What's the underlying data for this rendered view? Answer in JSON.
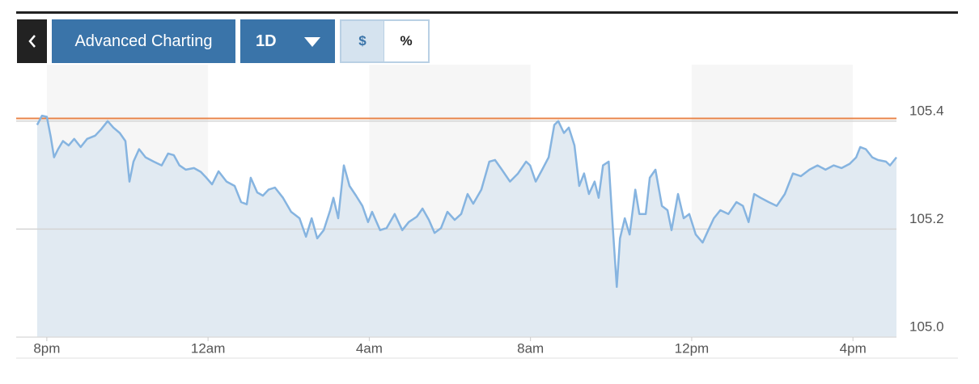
{
  "toolbar": {
    "title_button": "Advanced Charting",
    "range": "1D",
    "currency_toggle": "$",
    "percent_toggle": "%"
  },
  "chart_data": {
    "type": "line",
    "x": [
      -0.24,
      -0.12,
      0,
      0.1,
      0.18,
      0.28,
      0.4,
      0.54,
      0.68,
      0.84,
      1.0,
      1.2,
      1.35,
      1.51,
      1.65,
      1.81,
      1.95,
      2.05,
      2.15,
      2.29,
      2.45,
      2.65,
      2.85,
      3.01,
      3.15,
      3.29,
      3.45,
      3.65,
      3.82,
      3.96,
      4.1,
      4.26,
      4.46,
      4.66,
      4.82,
      4.96,
      5.06,
      5.22,
      5.36,
      5.5,
      5.66,
      5.86,
      6.06,
      6.27,
      6.43,
      6.57,
      6.71,
      6.87,
      7.03,
      7.11,
      7.23,
      7.37,
      7.51,
      7.67,
      7.83,
      7.97,
      8.07,
      8.27,
      8.43,
      8.63,
      8.82,
      8.98,
      9.18,
      9.32,
      9.48,
      9.62,
      9.78,
      9.94,
      10.12,
      10.28,
      10.44,
      10.58,
      10.78,
      10.98,
      11.12,
      11.29,
      11.49,
      11.69,
      11.89,
      11.99,
      12.13,
      12.29,
      12.45,
      12.59,
      12.69,
      12.83,
      12.95,
      13.09,
      13.21,
      13.33,
      13.45,
      13.59,
      13.69,
      13.8,
      13.94,
      14.04,
      14.14,
      14.22,
      14.34,
      14.46,
      14.6,
      14.7,
      14.86,
      14.96,
      15.1,
      15.26,
      15.4,
      15.5,
      15.66,
      15.8,
      15.94,
      16.1,
      16.27,
      16.41,
      16.55,
      16.71,
      16.91,
      17.11,
      17.27,
      17.41,
      17.55,
      17.71,
      17.91,
      18.11,
      18.31,
      18.51,
      18.71,
      18.92,
      19.12,
      19.32,
      19.52,
      19.72,
      19.92,
      20.08,
      20.18,
      20.32,
      20.48,
      20.62,
      20.82,
      20.92,
      21.08
    ],
    "series": [
      {
        "color": "#86b4e0",
        "fill": "#e1eaf2",
        "values": [
          105.393,
          105.41,
          105.408,
          105.37,
          105.333,
          105.348,
          105.363,
          105.355,
          105.367,
          105.352,
          105.367,
          105.373,
          105.385,
          105.4,
          105.388,
          105.378,
          105.363,
          105.288,
          105.325,
          105.348,
          105.333,
          105.325,
          105.318,
          105.34,
          105.337,
          105.318,
          105.31,
          105.313,
          105.306,
          105.295,
          105.283,
          105.307,
          105.288,
          105.28,
          105.25,
          105.246,
          105.295,
          105.268,
          105.262,
          105.273,
          105.277,
          105.258,
          105.232,
          105.22,
          105.186,
          105.22,
          105.183,
          105.198,
          105.235,
          105.258,
          105.22,
          105.318,
          105.28,
          105.262,
          105.243,
          105.213,
          105.232,
          105.198,
          105.202,
          105.228,
          105.198,
          105.213,
          105.223,
          105.238,
          105.217,
          105.193,
          105.202,
          105.232,
          105.217,
          105.228,
          105.265,
          105.247,
          105.273,
          105.325,
          105.328,
          105.31,
          105.288,
          105.303,
          105.325,
          105.318,
          105.288,
          105.31,
          105.333,
          105.393,
          105.4,
          105.378,
          105.388,
          105.355,
          105.28,
          105.303,
          105.265,
          105.288,
          105.258,
          105.318,
          105.325,
          105.205,
          105.093,
          105.183,
          105.22,
          105.19,
          105.273,
          105.228,
          105.228,
          105.295,
          105.31,
          105.243,
          105.235,
          105.198,
          105.265,
          105.22,
          105.228,
          105.19,
          105.175,
          105.198,
          105.22,
          105.235,
          105.228,
          105.25,
          105.243,
          105.213,
          105.265,
          105.258,
          105.25,
          105.243,
          105.265,
          105.303,
          105.298,
          105.31,
          105.318,
          105.31,
          105.318,
          105.313,
          105.321,
          105.333,
          105.352,
          105.348,
          105.333,
          105.328,
          105.325,
          105.318,
          105.333
        ]
      }
    ],
    "reference_line": 105.405,
    "reference_color": "#e8844a",
    "xlim": [
      -0.76,
      21.08
    ],
    "xticks": [
      {
        "value": 0,
        "label": "8pm"
      },
      {
        "value": 4,
        "label": "12am"
      },
      {
        "value": 8,
        "label": "4am"
      },
      {
        "value": 12,
        "label": "8am"
      },
      {
        "value": 16,
        "label": "12pm"
      },
      {
        "value": 20,
        "label": "4pm"
      }
    ],
    "ylim": [
      105.0,
      105.5
    ],
    "yticks": [
      {
        "value": 105.0,
        "label": "105.0"
      },
      {
        "value": 105.2,
        "label": "105.2"
      },
      {
        "value": 105.4,
        "label": "105.4"
      }
    ],
    "grid": true
  }
}
